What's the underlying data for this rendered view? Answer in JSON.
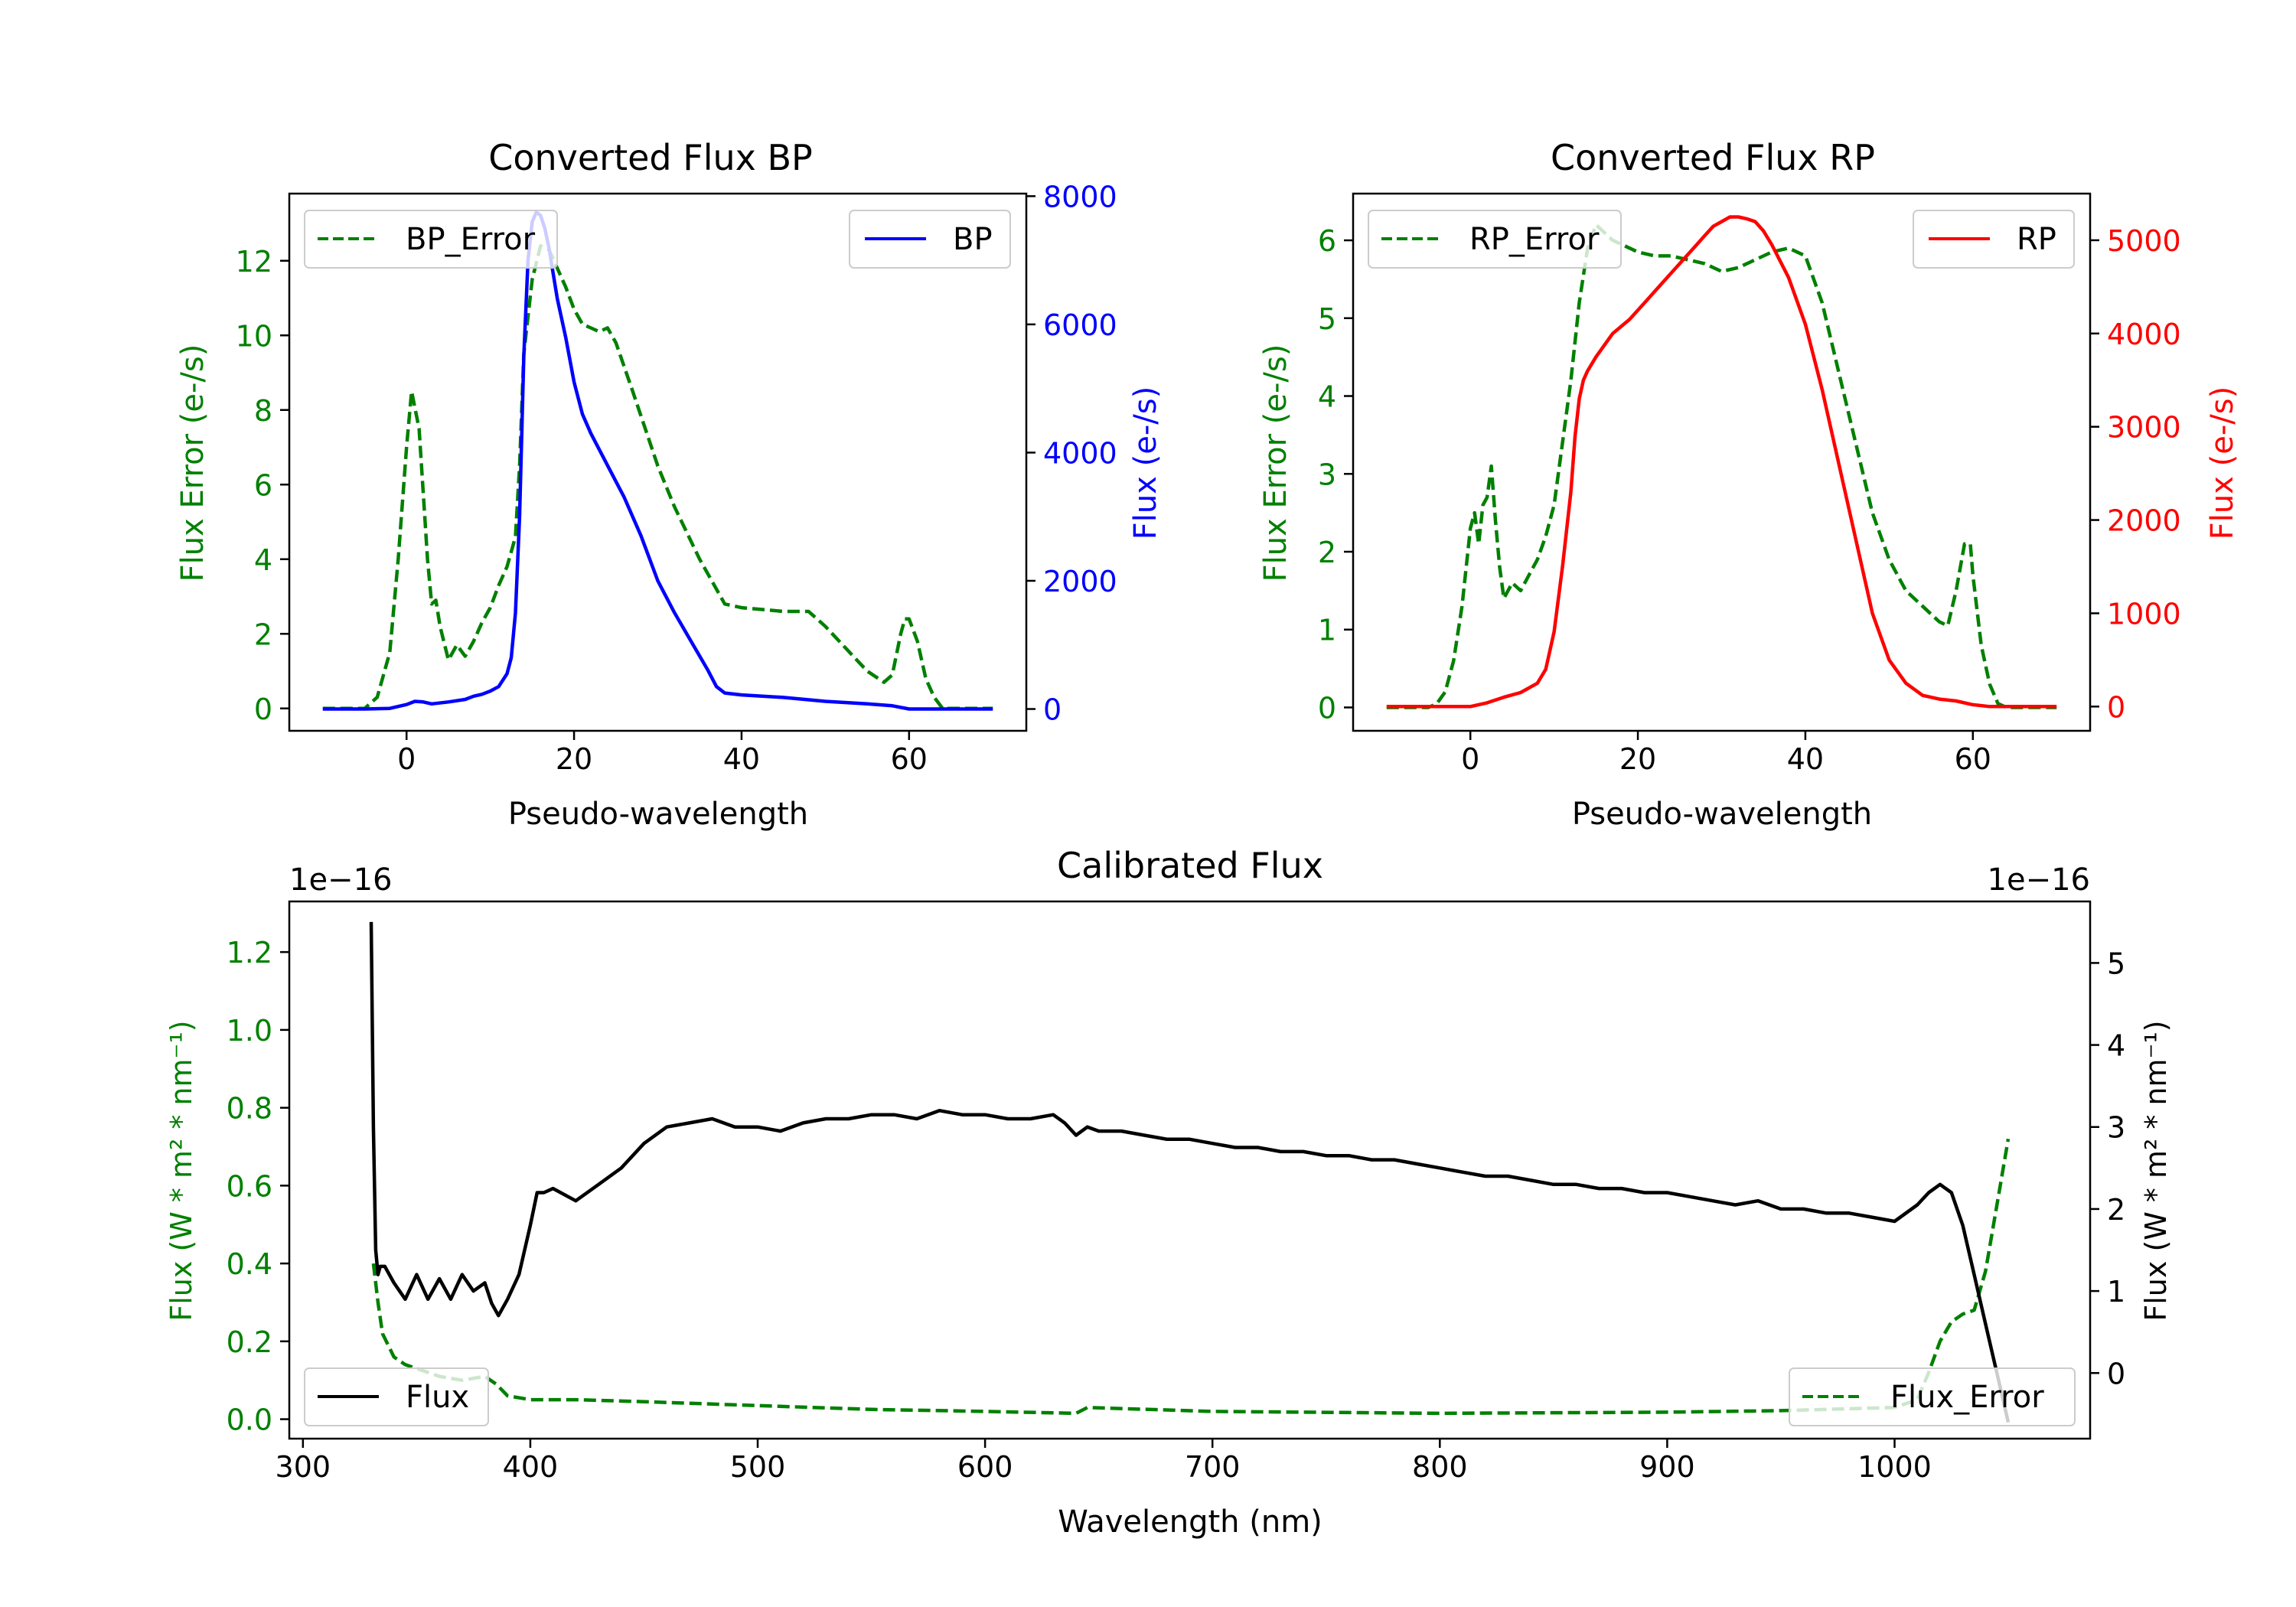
{
  "colors": {
    "green": "#008000",
    "blue": "#0000ff",
    "red": "#ff0000",
    "black": "#000000"
  },
  "chart_data": [
    {
      "id": "bp",
      "type": "line",
      "title": "Converted Flux BP",
      "xlabel": "Pseudo-wavelength",
      "ylabel_left": "Flux Error (e-/s)",
      "ylabel_right": "Flux (e-/s)",
      "xlim": [
        -14,
        74
      ],
      "ylim_left": [
        -0.6,
        13.8
      ],
      "ylim_right": [
        -340,
        8040
      ],
      "xticks": [
        0,
        20,
        40,
        60
      ],
      "yticks_left": [
        0,
        2,
        4,
        6,
        8,
        10,
        12
      ],
      "yticks_right": [
        0,
        2000,
        4000,
        6000,
        8000
      ],
      "legend_left": "BP_Error",
      "legend_right": "BP",
      "series": [
        {
          "name": "BP_Error",
          "axis": "left",
          "color": "#008000",
          "style": "dashed",
          "x": [
            -10,
            -5,
            -3.5,
            -2,
            -1,
            0,
            0.6,
            1.5,
            2.5,
            3,
            3.5,
            4,
            5,
            6,
            7,
            8,
            9,
            10,
            11,
            12,
            13,
            13.5,
            14,
            15,
            16,
            17,
            18,
            19,
            20,
            21,
            22,
            23,
            24,
            25,
            27,
            30,
            32,
            35,
            38,
            40,
            45,
            48,
            50,
            55,
            57,
            58,
            59,
            59.5,
            60,
            61,
            62,
            63,
            64,
            66,
            70
          ],
          "y": [
            0,
            0,
            0.3,
            1.5,
            4,
            7,
            8.5,
            7.5,
            4,
            2.8,
            2.9,
            2.2,
            1.3,
            1.7,
            1.4,
            1.8,
            2.3,
            2.7,
            3.3,
            3.8,
            4.6,
            6.5,
            9.5,
            11.5,
            12.4,
            12.3,
            11.8,
            11.3,
            10.7,
            10.3,
            10.2,
            10.1,
            10.2,
            9.8,
            8.5,
            6.5,
            5.4,
            4,
            2.8,
            2.7,
            2.6,
            2.6,
            2.2,
            1,
            0.7,
            0.9,
            2,
            2.4,
            2.4,
            1.8,
            0.8,
            0.3,
            0,
            0,
            0
          ]
        },
        {
          "name": "BP",
          "axis": "right",
          "color": "#0000ff",
          "style": "solid",
          "x": [
            -10,
            -5,
            -2,
            0,
            1,
            2,
            3,
            5,
            7,
            8,
            9,
            10,
            11,
            12,
            12.5,
            13,
            13.5,
            14,
            14.5,
            15,
            15.5,
            16,
            16.5,
            17,
            17.5,
            18,
            19,
            20,
            21,
            22,
            24,
            26,
            28,
            30,
            32,
            34,
            36,
            37,
            38,
            40,
            45,
            50,
            55,
            58,
            60,
            65,
            70
          ],
          "y": [
            0,
            0,
            10,
            70,
            120,
            110,
            80,
            110,
            150,
            200,
            230,
            280,
            350,
            550,
            800,
            1500,
            3000,
            5500,
            7000,
            7600,
            7750,
            7700,
            7500,
            7200,
            6800,
            6400,
            5800,
            5100,
            4600,
            4300,
            3800,
            3300,
            2700,
            2000,
            1500,
            1050,
            600,
            350,
            250,
            220,
            180,
            120,
            80,
            50,
            0,
            0,
            0
          ]
        }
      ]
    },
    {
      "id": "rp",
      "type": "line",
      "title": "Converted Flux RP",
      "xlabel": "Pseudo-wavelength",
      "ylabel_left": "Flux Error (e-/s)",
      "ylabel_right": "Flux (e-/s)",
      "xlim": [
        -14,
        74
      ],
      "ylim_left": [
        -0.3,
        6.6
      ],
      "ylim_right": [
        -260,
        5500
      ],
      "xticks": [
        0,
        20,
        40,
        60
      ],
      "yticks_left": [
        0,
        1,
        2,
        3,
        4,
        5,
        6
      ],
      "yticks_right": [
        0,
        1000,
        2000,
        3000,
        4000,
        5000
      ],
      "legend_left": "RP_Error",
      "legend_right": "RP",
      "series": [
        {
          "name": "RP_Error",
          "axis": "left",
          "color": "#008000",
          "style": "dashed",
          "x": [
            -10,
            -5,
            -4,
            -3,
            -2,
            -1,
            0,
            0.5,
            1,
            1.5,
            2,
            2.5,
            3,
            3.5,
            4,
            5,
            6,
            7,
            8,
            9,
            10,
            11,
            12,
            13,
            14,
            15,
            16,
            17,
            18,
            20,
            22,
            24,
            26,
            28,
            30,
            32,
            34,
            36,
            38,
            40,
            42,
            44,
            46,
            48,
            50,
            52,
            54,
            56,
            57,
            58,
            59,
            59.7,
            60,
            61,
            62,
            63,
            64,
            66,
            70
          ],
          "y": [
            0,
            0,
            0.05,
            0.2,
            0.6,
            1.3,
            2.3,
            2.5,
            2.1,
            2.6,
            2.7,
            3.1,
            2.4,
            1.8,
            1.4,
            1.6,
            1.5,
            1.7,
            1.9,
            2.2,
            2.6,
            3.4,
            4.2,
            5.2,
            5.9,
            6.2,
            6.1,
            6,
            5.95,
            5.85,
            5.8,
            5.8,
            5.75,
            5.7,
            5.6,
            5.65,
            5.75,
            5.85,
            5.9,
            5.8,
            5.2,
            4.3,
            3.4,
            2.5,
            1.9,
            1.5,
            1.3,
            1.1,
            1.05,
            1.5,
            2.1,
            2.1,
            1.7,
            0.8,
            0.3,
            0.05,
            0,
            0,
            0
          ]
        },
        {
          "name": "RP",
          "axis": "right",
          "color": "#ff0000",
          "style": "solid",
          "x": [
            -10,
            -5,
            0,
            2,
            4,
            6,
            8,
            9,
            10,
            11,
            12,
            12.5,
            13,
            13.5,
            14,
            15,
            17,
            19,
            21,
            23,
            25,
            27,
            28,
            29,
            30,
            31,
            32,
            33,
            34,
            35,
            36,
            38,
            40,
            42,
            44,
            46,
            48,
            50,
            52,
            54,
            56,
            58,
            60,
            62,
            65,
            70
          ],
          "y": [
            0,
            0,
            0,
            40,
            100,
            150,
            250,
            400,
            800,
            1500,
            2300,
            2900,
            3300,
            3500,
            3600,
            3750,
            4000,
            4150,
            4350,
            4550,
            4750,
            4950,
            5050,
            5150,
            5200,
            5250,
            5250,
            5230,
            5200,
            5100,
            4950,
            4600,
            4100,
            3400,
            2600,
            1800,
            1000,
            500,
            250,
            120,
            80,
            60,
            20,
            0,
            0,
            0
          ]
        }
      ]
    },
    {
      "id": "cal",
      "type": "line",
      "title": "Calibrated Flux",
      "xlabel": "Wavelength (nm)",
      "ylabel_left": "Flux (W * m² * nm⁻¹)",
      "ylabel_right": "Flux (W * m² * nm⁻¹)",
      "offset_left": "1e−16",
      "offset_right": "1e−16",
      "xlim": [
        294,
        1086
      ],
      "ylim_left": [
        -0.05,
        1.33
      ],
      "ylim_right": [
        -0.8,
        5.75
      ],
      "xticks": [
        300,
        400,
        500,
        600,
        700,
        800,
        900,
        1000
      ],
      "yticks_left": [
        0.0,
        0.2,
        0.4,
        0.6,
        0.8,
        1.0,
        1.2
      ],
      "yticks_left_labels": [
        "0.0",
        "0.2",
        "0.4",
        "0.6",
        "0.8",
        "1.0",
        "1.2"
      ],
      "yticks_right": [
        0,
        1,
        2,
        3,
        4,
        5
      ],
      "legend_left": "Flux",
      "legend_right": "Flux_Error",
      "series": [
        {
          "name": "Flux_Error",
          "axis": "left",
          "color": "#008000",
          "style": "dashed",
          "x": [
            331,
            333,
            335,
            340,
            345,
            350,
            360,
            370,
            380,
            385,
            390,
            400,
            420,
            450,
            500,
            550,
            600,
            640,
            645,
            700,
            800,
            900,
            950,
            1000,
            1010,
            1015,
            1020,
            1025,
            1030,
            1035,
            1040,
            1045,
            1050
          ],
          "y": [
            0.4,
            0.3,
            0.22,
            0.16,
            0.14,
            0.13,
            0.11,
            0.1,
            0.11,
            0.09,
            0.06,
            0.05,
            0.05,
            0.045,
            0.035,
            0.025,
            0.02,
            0.015,
            0.03,
            0.02,
            0.015,
            0.018,
            0.022,
            0.03,
            0.05,
            0.12,
            0.2,
            0.25,
            0.27,
            0.28,
            0.38,
            0.55,
            0.72
          ]
        },
        {
          "name": "Flux",
          "axis": "right",
          "color": "#000000",
          "style": "solid",
          "x": [
            330,
            331,
            332,
            333,
            334,
            336,
            340,
            345,
            350,
            355,
            360,
            365,
            370,
            375,
            380,
            383,
            386,
            390,
            395,
            400,
            403,
            406,
            410,
            420,
            430,
            440,
            450,
            460,
            470,
            480,
            490,
            500,
            510,
            520,
            530,
            540,
            550,
            560,
            570,
            580,
            590,
            600,
            610,
            620,
            630,
            635,
            640,
            645,
            650,
            660,
            670,
            680,
            690,
            700,
            710,
            720,
            730,
            740,
            750,
            760,
            770,
            780,
            790,
            800,
            810,
            820,
            830,
            840,
            850,
            860,
            870,
            880,
            890,
            900,
            910,
            920,
            930,
            940,
            950,
            960,
            970,
            980,
            990,
            1000,
            1010,
            1015,
            1020,
            1025,
            1030,
            1035,
            1040,
            1045,
            1050
          ],
          "y": [
            5.5,
            3,
            1.5,
            1.2,
            1.3,
            1.3,
            1.1,
            0.9,
            1.2,
            0.9,
            1.15,
            0.9,
            1.2,
            1.0,
            1.1,
            0.85,
            0.7,
            0.9,
            1.2,
            1.8,
            2.2,
            2.2,
            2.25,
            2.1,
            2.3,
            2.5,
            2.8,
            3.0,
            3.05,
            3.1,
            3.0,
            3.0,
            2.95,
            3.05,
            3.1,
            3.1,
            3.15,
            3.15,
            3.1,
            3.2,
            3.15,
            3.15,
            3.1,
            3.1,
            3.15,
            3.05,
            2.9,
            3.0,
            2.95,
            2.95,
            2.9,
            2.85,
            2.85,
            2.8,
            2.75,
            2.75,
            2.7,
            2.7,
            2.65,
            2.65,
            2.6,
            2.6,
            2.55,
            2.5,
            2.45,
            2.4,
            2.4,
            2.35,
            2.3,
            2.3,
            2.25,
            2.25,
            2.2,
            2.2,
            2.15,
            2.1,
            2.05,
            2.1,
            2.0,
            2.0,
            1.95,
            1.95,
            1.9,
            1.85,
            2.05,
            2.2,
            2.3,
            2.2,
            1.8,
            1.2,
            0.6,
            0.0,
            -0.6
          ]
        }
      ]
    }
  ]
}
